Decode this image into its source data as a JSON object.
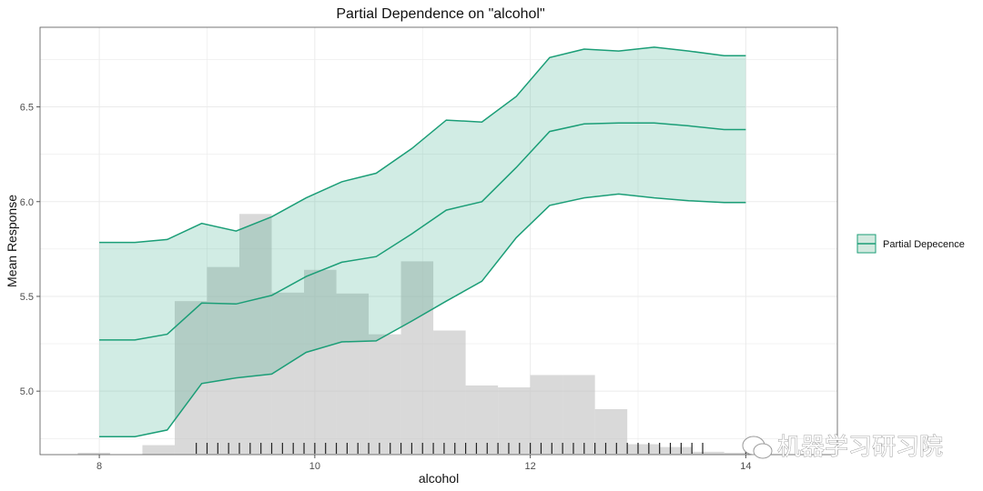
{
  "chart_data": {
    "type": "area",
    "title": "Partial Dependence on \"alcohol\"",
    "xlabel": "alcohol",
    "ylabel": "Mean Response",
    "xlim": [
      7.45,
      14.85
    ],
    "ylim": [
      4.665,
      6.92
    ],
    "x_ticks": [
      8,
      10,
      12,
      14
    ],
    "x_tick_labels": [
      "8",
      "10",
      "12",
      "14"
    ],
    "y_ticks": [
      5.0,
      5.5,
      6.0,
      6.5
    ],
    "y_tick_labels": [
      "5.0",
      "5.5",
      "6.0",
      "6.5"
    ],
    "grid": true,
    "legend": {
      "position": "right",
      "entries": [
        "Partial Depecence"
      ]
    },
    "colors": {
      "line": "#1b9e77",
      "ribbon": "#d2e9df",
      "histogram": "#bfbfbf"
    },
    "series": [
      {
        "name": "Partial Depecence",
        "x": [
          8.0,
          8.33,
          8.63,
          8.95,
          9.27,
          9.6,
          9.92,
          10.25,
          10.57,
          10.9,
          11.22,
          11.55,
          11.87,
          12.18,
          12.5,
          12.82,
          13.15,
          13.47,
          13.8,
          14.0
        ],
        "mean": [
          5.27,
          5.27,
          5.3,
          5.465,
          5.46,
          5.505,
          5.605,
          5.68,
          5.71,
          5.83,
          5.955,
          6.0,
          6.18,
          6.37,
          6.41,
          6.415,
          6.415,
          6.4,
          6.38,
          6.38
        ],
        "upper": [
          5.785,
          5.785,
          5.8,
          5.885,
          5.845,
          5.92,
          6.02,
          6.105,
          6.15,
          6.28,
          6.43,
          6.42,
          6.555,
          6.76,
          6.805,
          6.795,
          6.815,
          6.795,
          6.77,
          6.77
        ],
        "lower": [
          4.76,
          4.76,
          4.795,
          5.04,
          5.07,
          5.09,
          5.205,
          5.26,
          5.265,
          5.37,
          5.475,
          5.58,
          5.81,
          5.98,
          6.02,
          6.04,
          6.02,
          6.005,
          5.995,
          5.995
        ]
      }
    ],
    "histogram": {
      "bin_edges": [
        7.8,
        8.1,
        8.4,
        8.7,
        9.0,
        9.3,
        9.6,
        9.9,
        10.2,
        10.5,
        10.8,
        11.1,
        11.4,
        11.7,
        12.0,
        12.3,
        12.6,
        12.9,
        13.2,
        13.5,
        13.8,
        14.1
      ],
      "values": [
        4.675,
        4.0,
        4.715,
        5.475,
        5.655,
        5.935,
        5.52,
        5.64,
        5.515,
        5.3,
        5.685,
        5.32,
        5.03,
        5.02,
        5.085,
        5.085,
        4.905,
        4.72,
        4.705,
        4.68,
        4.675
      ]
    },
    "rug": [
      8.9,
      9.0,
      9.1,
      9.2,
      9.3,
      9.4,
      9.5,
      9.6,
      9.7,
      9.8,
      9.9,
      10.0,
      10.1,
      10.2,
      10.3,
      10.4,
      10.5,
      10.6,
      10.7,
      10.8,
      10.9,
      11.0,
      11.1,
      11.2,
      11.3,
      11.4,
      11.5,
      11.6,
      11.7,
      11.8,
      11.9,
      12.0,
      12.1,
      12.2,
      12.3,
      12.4,
      12.5,
      12.6,
      12.7,
      12.8,
      12.9,
      13.0,
      13.1,
      13.2,
      13.3,
      13.4,
      13.5,
      13.6,
      14.0
    ],
    "watermark": "机器学习研习院"
  }
}
